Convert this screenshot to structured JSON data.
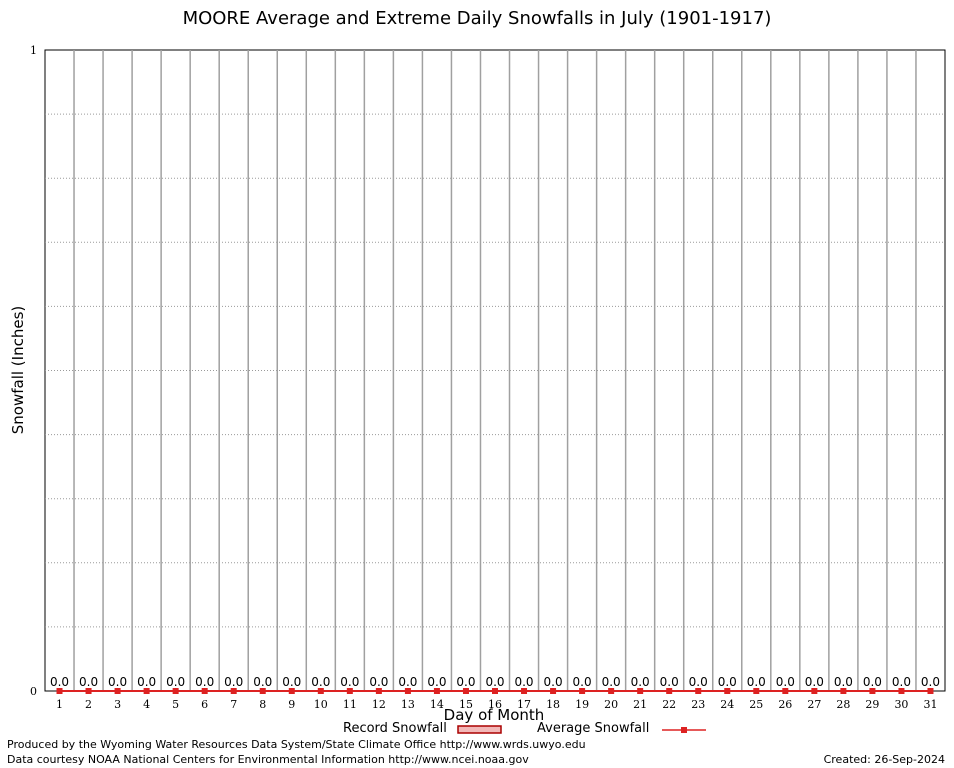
{
  "chart_data": {
    "type": "bar",
    "title": "MOORE Average and Extreme Daily Snowfalls in July (1901-1917)",
    "xlabel": "Day of Month",
    "ylabel": "Snowfall (Inches)",
    "ylim": [
      0,
      1
    ],
    "ytick_labels": [
      "0",
      "1"
    ],
    "categories": [
      "1",
      "2",
      "3",
      "4",
      "5",
      "6",
      "7",
      "8",
      "9",
      "10",
      "11",
      "12",
      "13",
      "14",
      "15",
      "16",
      "17",
      "18",
      "19",
      "20",
      "21",
      "22",
      "23",
      "24",
      "25",
      "26",
      "27",
      "28",
      "29",
      "30",
      "31"
    ],
    "series": [
      {
        "name": "Record Snowfall",
        "type": "bar",
        "color": "#cc0000",
        "values": [
          0,
          0,
          0,
          0,
          0,
          0,
          0,
          0,
          0,
          0,
          0,
          0,
          0,
          0,
          0,
          0,
          0,
          0,
          0,
          0,
          0,
          0,
          0,
          0,
          0,
          0,
          0,
          0,
          0,
          0,
          0
        ]
      },
      {
        "name": "Average Snowfall",
        "type": "line",
        "color": "#dd2222",
        "values": [
          0,
          0,
          0,
          0,
          0,
          0,
          0,
          0,
          0,
          0,
          0,
          0,
          0,
          0,
          0,
          0,
          0,
          0,
          0,
          0,
          0,
          0,
          0,
          0,
          0,
          0,
          0,
          0,
          0,
          0,
          0
        ]
      }
    ],
    "data_labels": [
      "0.0",
      "0.0",
      "0.0",
      "0.0",
      "0.0",
      "0.0",
      "0.0",
      "0.0",
      "0.0",
      "0.0",
      "0.0",
      "0.0",
      "0.0",
      "0.0",
      "0.0",
      "0.0",
      "0.0",
      "0.0",
      "0.0",
      "0.0",
      "0.0",
      "0.0",
      "0.0",
      "0.0",
      "0.0",
      "0.0",
      "0.0",
      "0.0",
      "0.0",
      "0.0",
      "0.0"
    ],
    "grid": true,
    "legend_position": "bottom-center"
  },
  "footer": {
    "produced_by": "Produced by the Wyoming Water Resources Data System/State Climate Office http://www.wrds.uwyo.edu",
    "data_courtesy": "Data courtesy NOAA National Centers for Environmental Information http://www.ncei.noaa.gov",
    "created": "Created:  26-Sep-2024"
  }
}
